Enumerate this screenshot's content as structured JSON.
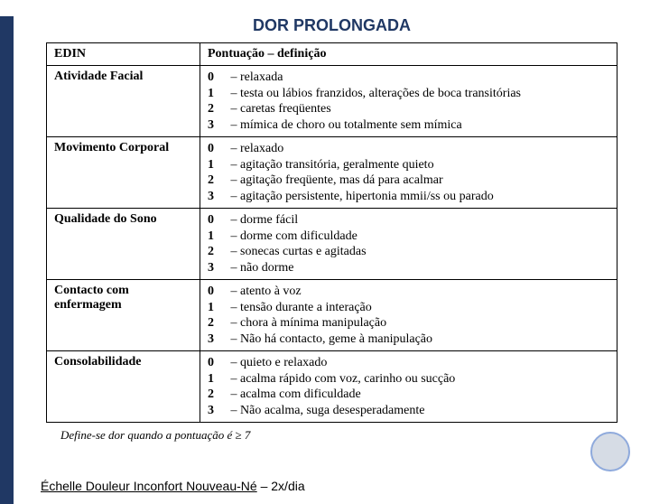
{
  "title": "DOR  PROLONGADA",
  "headers": {
    "c1": "EDIN",
    "c2": "Pontuação – definição"
  },
  "rows": [
    {
      "label": "Atividade Facial",
      "scores": [
        {
          "n": "0",
          "t": "– relaxada"
        },
        {
          "n": "1",
          "t": "– testa ou lábios franzidos, alterações de boca transitórias"
        },
        {
          "n": "2",
          "t": "– caretas freqüentes"
        },
        {
          "n": "3",
          "t": "– mímica de choro ou totalmente sem mímica"
        }
      ]
    },
    {
      "label": "Movimento Corporal",
      "scores": [
        {
          "n": "0",
          "t": "– relaxado"
        },
        {
          "n": "1",
          "t": "– agitação transitória, geralmente quieto"
        },
        {
          "n": "2",
          "t": "– agitação freqüente, mas dá para acalmar"
        },
        {
          "n": "3",
          "t": "– agitação persistente, hipertonia mmii/ss ou parado"
        }
      ]
    },
    {
      "label": "Qualidade do Sono",
      "scores": [
        {
          "n": "0",
          "t": "– dorme fácil"
        },
        {
          "n": "1",
          "t": "– dorme com dificuldade"
        },
        {
          "n": "2",
          "t": "– sonecas curtas e agitadas"
        },
        {
          "n": "3",
          "t": "– não dorme"
        }
      ]
    },
    {
      "label": "Contacto com enfermagem",
      "scores": [
        {
          "n": "0",
          "t": "– atento à voz"
        },
        {
          "n": "1",
          "t": "– tensão durante a interação"
        },
        {
          "n": "2",
          "t": "– chora à mínima manipulação"
        },
        {
          "n": "3",
          "t": "– Não há contacto, geme à manipulação"
        }
      ]
    },
    {
      "label": "Consolabilidade",
      "scores": [
        {
          "n": "0",
          "t": "– quieto e relaxado"
        },
        {
          "n": "1",
          "t": "– acalma rápido com voz, carinho ou sucção"
        },
        {
          "n": "2",
          "t": "– acalma com dificuldade"
        },
        {
          "n": "3",
          "t": "– Não acalma, suga desesperadamente"
        }
      ]
    }
  ],
  "footnote": "Define-se dor quando a pontuação é ≥ 7",
  "bottom_underline": "Échelle Douleur Inconfort Nouveau-Né",
  "bottom_rest": " – 2x/dia",
  "colors": {
    "accent": "#203864",
    "circle_fill": "#d6dce5",
    "circle_border": "#8faadc"
  }
}
